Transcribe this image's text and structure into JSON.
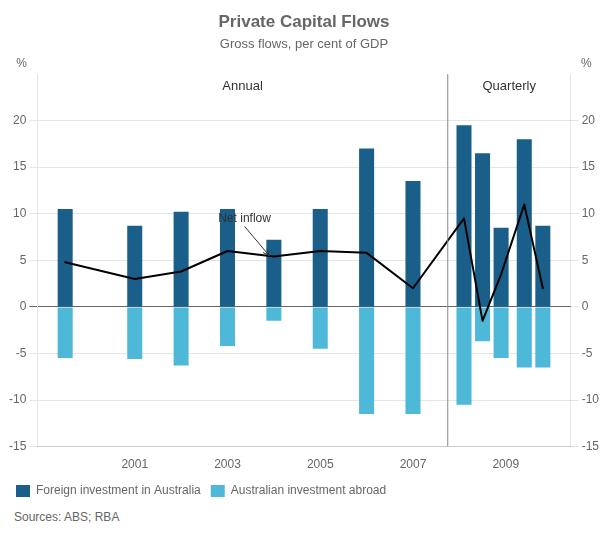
{
  "chart_data": {
    "type": "bar",
    "title": "Private Capital Flows",
    "subtitle": "Gross flows, per cent of GDP",
    "x": [
      1999.5,
      2001.0,
      2002.0,
      2003.0,
      2004.0,
      2005.0,
      2006.0,
      2007.0,
      2008.1,
      2008.5,
      2008.9,
      2009.4,
      2009.8
    ],
    "series": [
      {
        "name": "Foreign investment in Australia",
        "color": "#1a5f8a",
        "values": [
          10.5,
          8.7,
          10.2,
          10.5,
          7.2,
          10.5,
          17.0,
          13.5,
          19.5,
          16.5,
          8.5,
          18.0,
          8.7
        ]
      },
      {
        "name": "Australian investment abroad",
        "color": "#4db8d8",
        "values": [
          -5.5,
          -5.6,
          -6.3,
          -4.2,
          -1.5,
          -4.5,
          -11.5,
          -11.5,
          -10.5,
          -3.7,
          -5.5,
          -6.5,
          -6.5
        ]
      },
      {
        "type": "line",
        "color": "#000000",
        "values": [
          4.8,
          3.0,
          3.8,
          6.0,
          5.4,
          6.0,
          5.8,
          2.0,
          9.5,
          -1.5,
          3.5,
          11.0,
          2.0
        ]
      }
    ],
    "xlim": [
      1998.9,
      2010.4
    ],
    "xticks": [
      2001,
      2003,
      2005,
      2007,
      2009
    ],
    "ylim": [
      -15,
      25
    ],
    "yticks": [
      -15,
      -10,
      -5,
      0,
      5,
      10,
      15,
      20
    ],
    "y2lim": [
      -15,
      25
    ],
    "y2ticks": [
      -15,
      -10,
      -5,
      0,
      5,
      10,
      15,
      20
    ],
    "ylabel": "%",
    "y2label": "%",
    "divider_x": 2007.75,
    "section_labels": [
      "Annual",
      "Quarterly"
    ],
    "annotations": [
      {
        "text": "Net inflow",
        "x": 2003.9,
        "y": 5.5,
        "text_x": 2002.8,
        "text_y": 9.5
      }
    ],
    "sources": "Sources: ABS; RBA",
    "grid": true,
    "legend": "bottom"
  }
}
